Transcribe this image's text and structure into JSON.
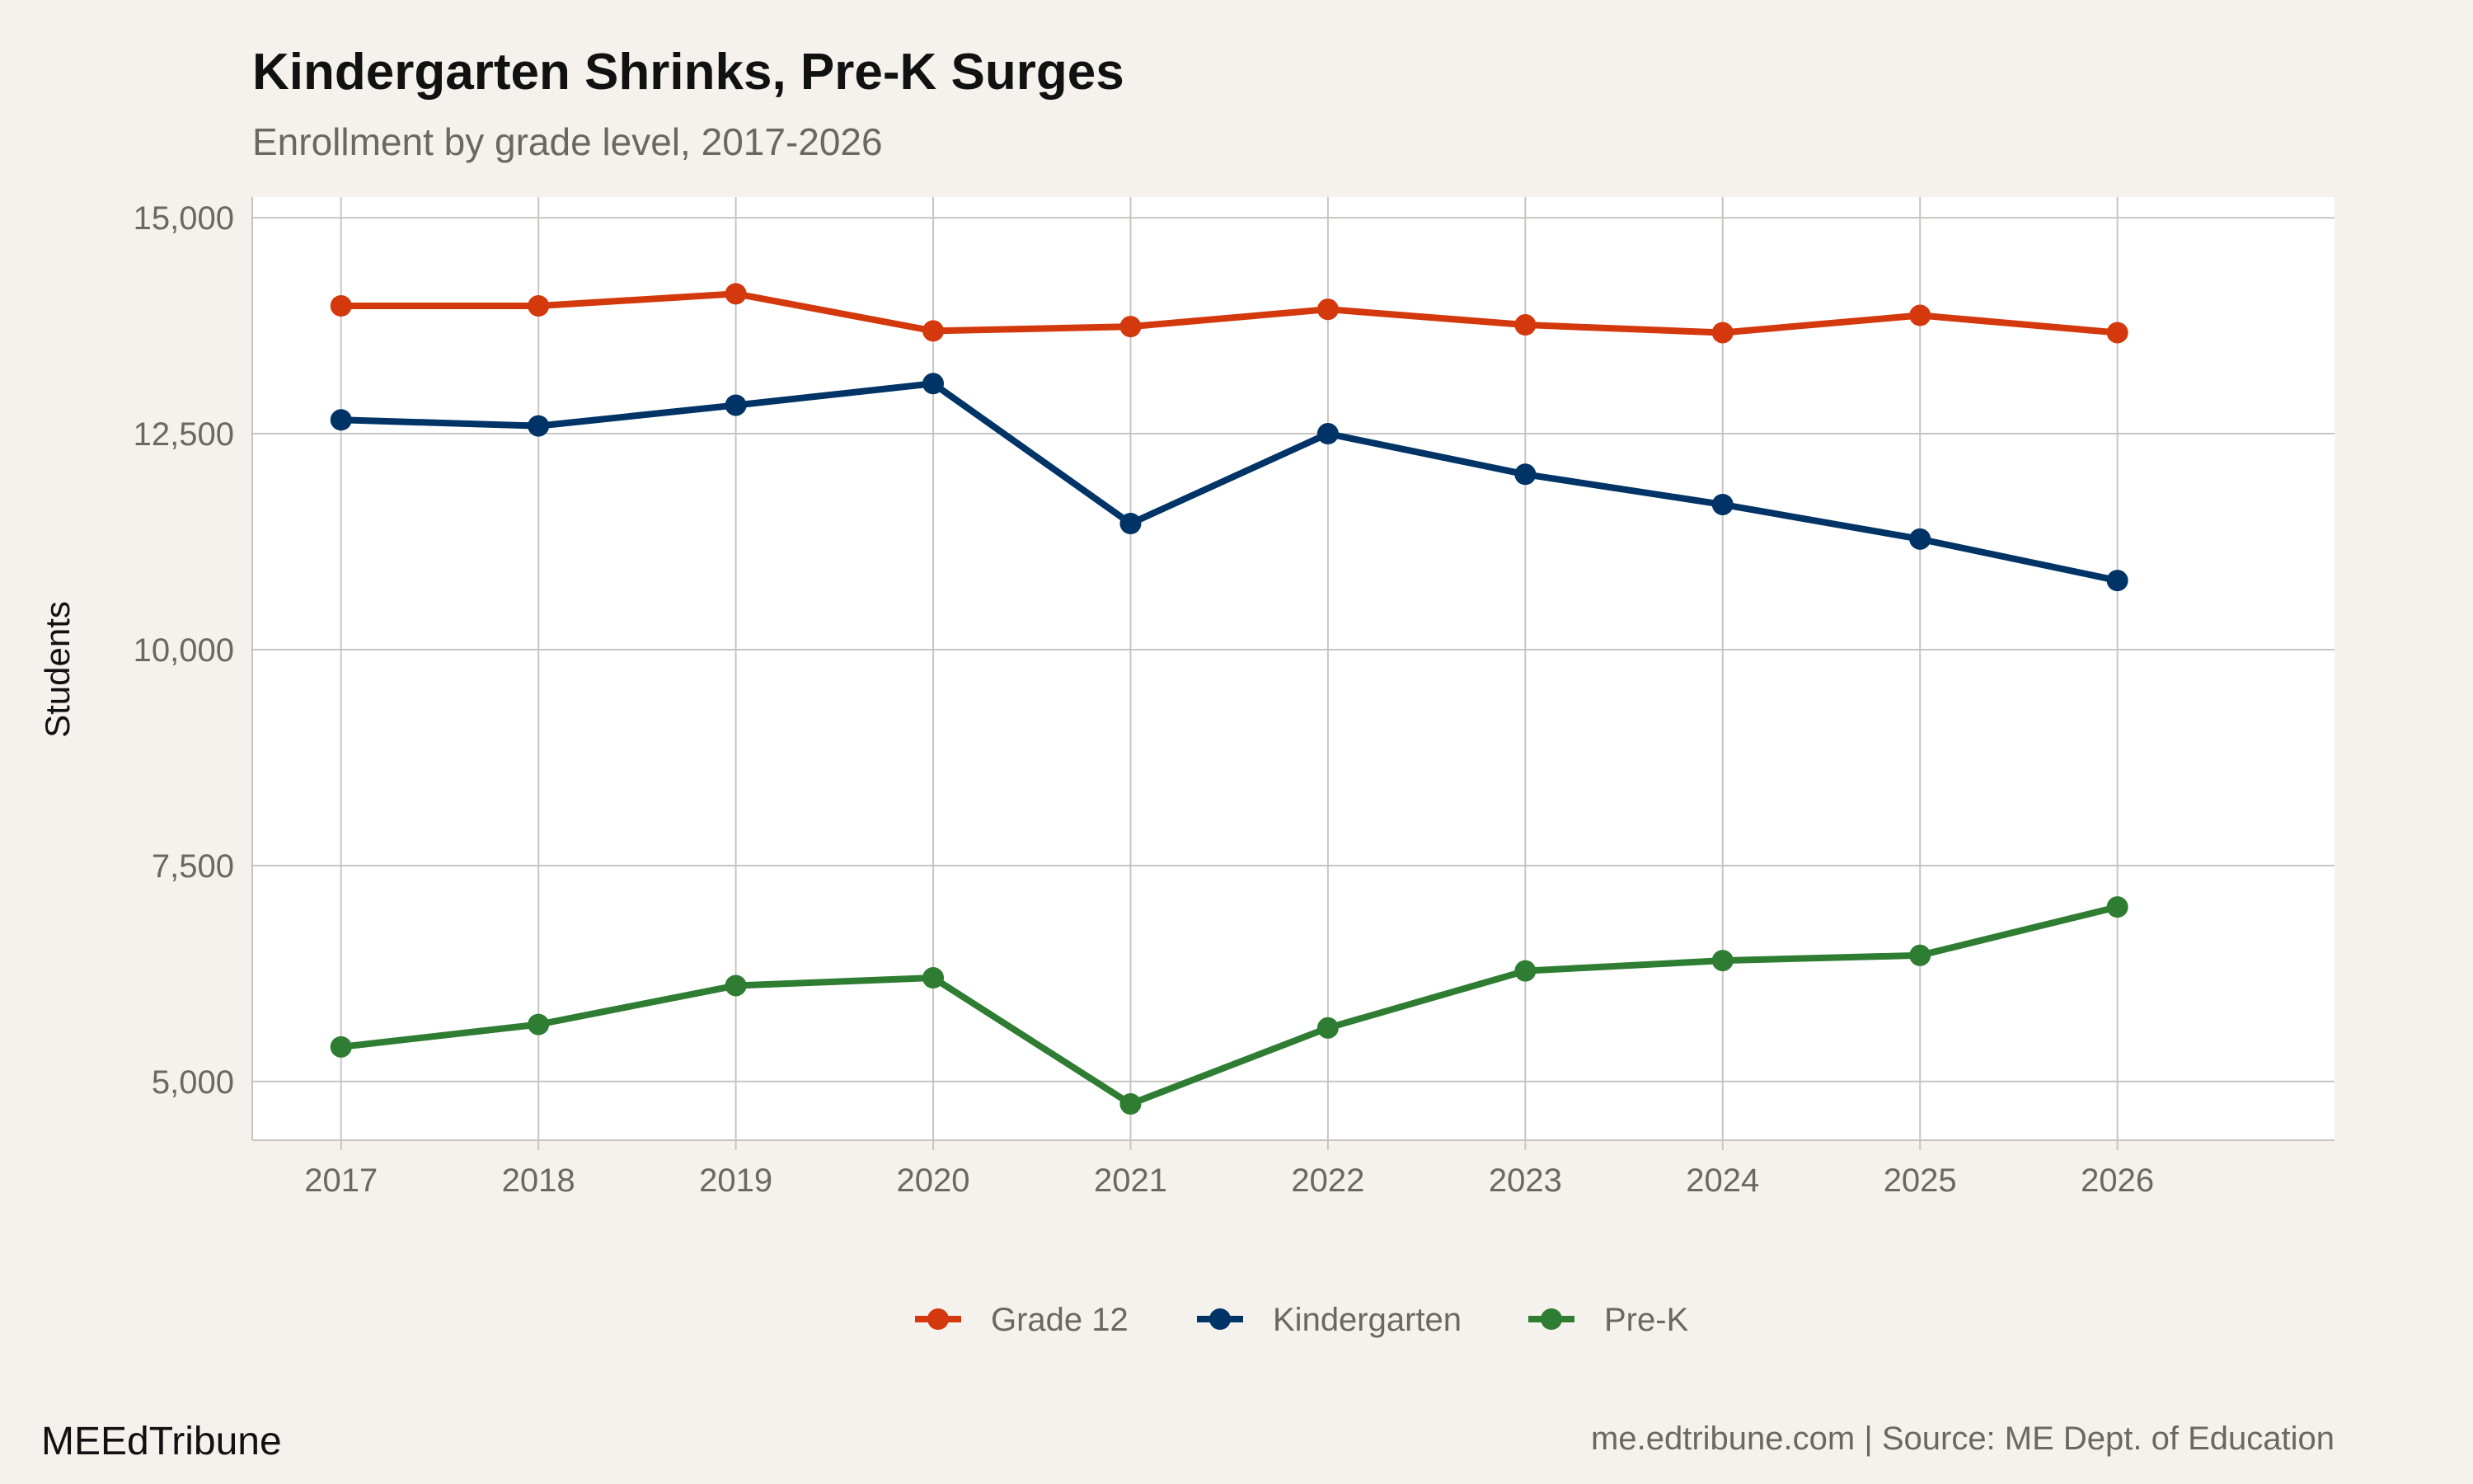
{
  "chart_data": {
    "type": "line",
    "title": "Kindergarten Shrinks, Pre-K Surges",
    "subtitle": "Enrollment by grade level, 2017-2026",
    "xlabel": "",
    "ylabel": "Students",
    "x": [
      2017,
      2018,
      2019,
      2020,
      2021,
      2022,
      2023,
      2024,
      2025,
      2026
    ],
    "x_tick_labels": [
      "2017",
      "2018",
      "2019",
      "2020",
      "2021",
      "2022",
      "2023",
      "2024",
      "2025",
      "2026"
    ],
    "y_ticks": [
      5000,
      7500,
      10000,
      12500,
      15000
    ],
    "y_tick_labels": [
      "5,000",
      "7,500",
      "10,000",
      "12,500",
      "15,000"
    ],
    "ylim": [
      4320,
      15240
    ],
    "xlim": [
      2016.55,
      2027.1
    ],
    "grid": true,
    "legend_position": "bottom",
    "series": [
      {
        "name": "Grade 12",
        "color": "#d4380d",
        "values": [
          13980,
          13980,
          14120,
          13690,
          13740,
          13940,
          13760,
          13670,
          13870,
          13670
        ]
      },
      {
        "name": "Kindergarten",
        "color": "#003366",
        "values": [
          12660,
          12590,
          12830,
          13080,
          11460,
          12500,
          12030,
          11680,
          11280,
          10800
        ]
      },
      {
        "name": "Pre-K",
        "color": "#2e7d32",
        "values": [
          5400,
          5660,
          6110,
          6200,
          4740,
          5620,
          6280,
          6400,
          6460,
          7020
        ]
      }
    ]
  },
  "footer": {
    "brand": "MEEdTribune",
    "source": "me.edtribune.com | Source: ME Dept. of Education"
  },
  "colors": {
    "background": "#f5f2ee",
    "panel": "#ffffff",
    "grid": "#c8c5c0"
  }
}
